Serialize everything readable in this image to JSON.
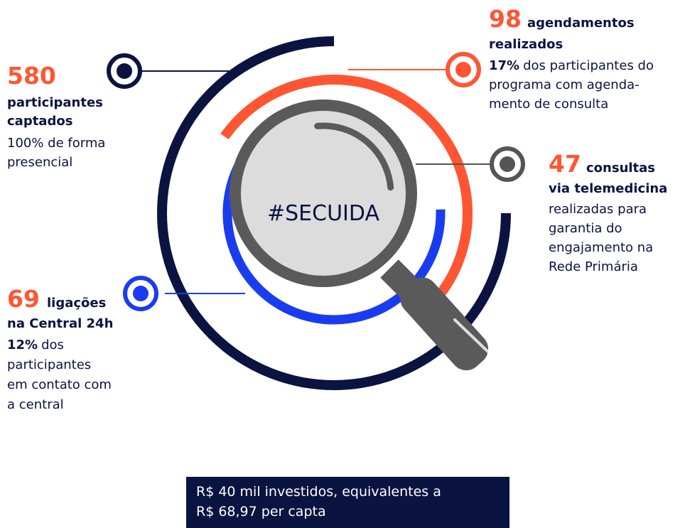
{
  "center_label": "#SECUIDA",
  "stats": [
    {
      "number": 580,
      "label": [
        "participantes",
        "captados"
      ],
      "description": [
        "100% de forma",
        "presencial"
      ]
    },
    {
      "number": 98,
      "label": [
        "agendamentos",
        "realizados"
      ],
      "highlight": "17%",
      "description": [
        "dos participantes do",
        "programa com agenda-",
        "mento de consulta"
      ]
    },
    {
      "number": 47,
      "label": [
        "consultas",
        "via telemedicina"
      ],
      "description": [
        "realizadas para",
        "garantia do",
        "engajamento na",
        "Rede Primária"
      ]
    },
    {
      "number": 69,
      "label": [
        "ligações",
        "na Central 24h"
      ],
      "highlight": "12%",
      "description": [
        "dos",
        "participantes",
        "em contato com",
        "a central"
      ]
    }
  ],
  "footer": [
    "R$ 40 mil investidos, equivalentes a",
    "R$ 68,97 per capta"
  ]
}
